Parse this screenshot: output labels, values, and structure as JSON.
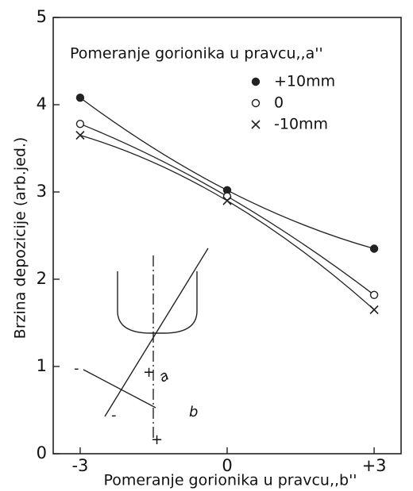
{
  "chart_data": {
    "type": "line",
    "x_label": "Pomeranje gorionika u pravcu,,b''",
    "y_label": "Brzina depozicije (arb.jed.)",
    "legend_title": "Pomeranje gorionika u pravcu,,a''",
    "x": [
      -3,
      0,
      3
    ],
    "series": [
      {
        "name": "+10mm",
        "marker": "filled-circle",
        "color": "#222",
        "values": [
          4.08,
          3.02,
          2.35
        ]
      },
      {
        "name": "0",
        "marker": "circle",
        "color": "#222",
        "values": [
          3.78,
          2.95,
          1.82
        ]
      },
      {
        "name": "-10mm",
        "marker": "x",
        "color": "#222",
        "values": [
          3.65,
          2.9,
          1.65
        ]
      }
    ],
    "xlim": [
      -3.55,
      3.55
    ],
    "xticks": [
      -3,
      0,
      {
        "value": 3,
        "label": "+3"
      }
    ],
    "ylim": [
      0,
      5
    ],
    "yticks": [
      0,
      1,
      2,
      3,
      4,
      5
    ],
    "annotations": [
      "a",
      "b",
      "+",
      "-",
      "+",
      "-"
    ]
  }
}
